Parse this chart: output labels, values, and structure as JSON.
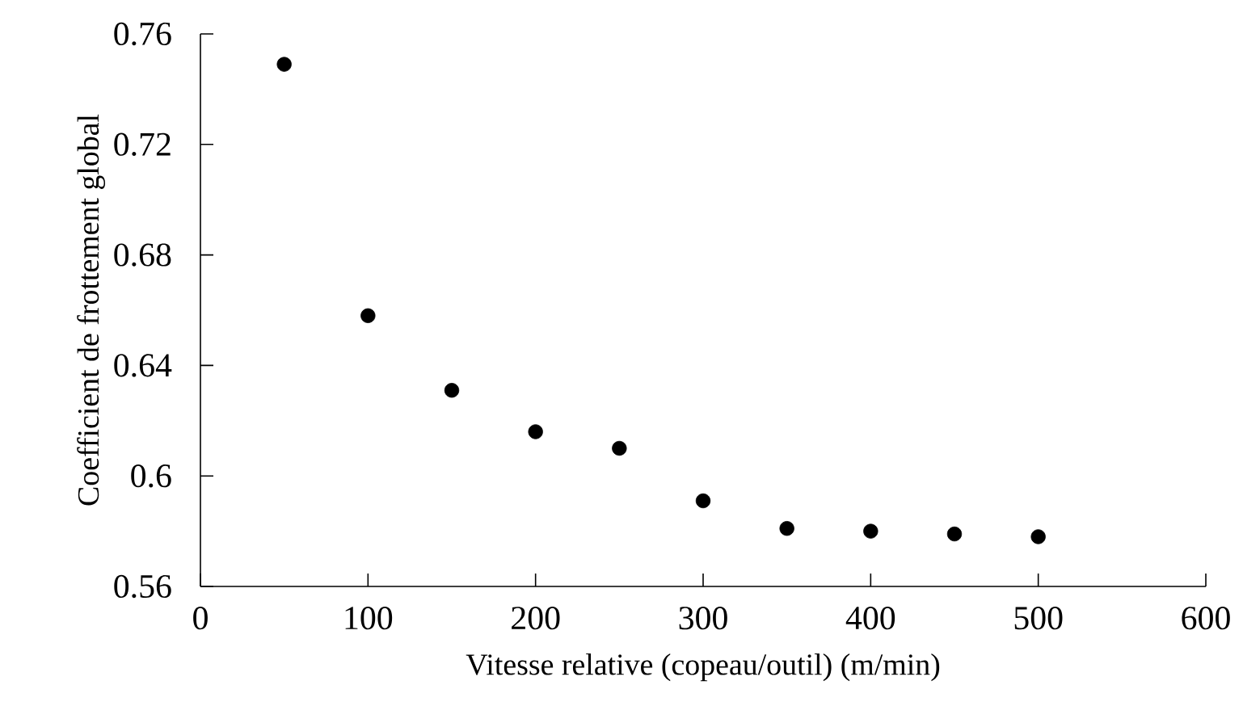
{
  "chart_data": {
    "type": "scatter",
    "xlabel": "Vitesse relative (copeau/outil) (m/min)",
    "ylabel": "Coefficient de frottement global",
    "x": [
      50,
      100,
      150,
      200,
      250,
      300,
      350,
      400,
      450,
      500
    ],
    "series": [
      {
        "color": "#000000",
        "values": [
          0.749,
          0.658,
          0.631,
          0.616,
          0.61,
          0.591,
          0.581,
          0.58,
          0.579,
          0.578
        ]
      }
    ],
    "xlim": [
      0,
      600
    ],
    "ylim": [
      0.56,
      0.76
    ],
    "xticks": [
      0,
      100,
      200,
      300,
      400,
      500,
      600
    ],
    "yticks": [
      0.56,
      0.6,
      0.64,
      0.68,
      0.72,
      0.76
    ],
    "grid": false
  }
}
